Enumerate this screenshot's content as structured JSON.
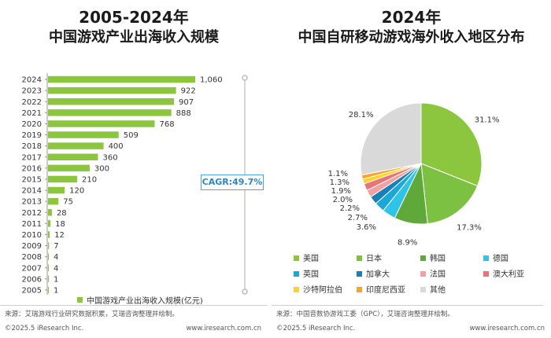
{
  "left": {
    "title_line1": "2005-2024年",
    "title_line2": "中国游戏产业出海收入规模",
    "cagr_label": "CAGR:49.7%",
    "legend_label": "中国游戏产业出海收入规模(亿元)",
    "source": "来源：艾瑞游戏行业研究数据积累，艾瑞咨询整理并绘制。",
    "copyright": "©2025.5 iResearch Inc.",
    "website": "www.iresearch.com.cn",
    "bar_color": "#8cc63e"
  },
  "right": {
    "title_line1": "2024年",
    "title_line2": "中国自研移动游戏海外收入地区分布",
    "source": "来源：中国音数协游戏工委（GPC），艾瑞咨询整理并绘制。",
    "copyright": "©2025.5 iResearch Inc.",
    "website": "www.iresearch.com.cn"
  },
  "chart_data": [
    {
      "type": "bar",
      "orientation": "horizontal",
      "categories": [
        "2024",
        "2023",
        "2022",
        "2021",
        "2020",
        "2019",
        "2018",
        "2017",
        "2016",
        "2015",
        "2014",
        "2013",
        "2012",
        "2011",
        "2010",
        "2009",
        "2008",
        "2007",
        "2006",
        "2005"
      ],
      "values": [
        1060,
        922,
        907,
        888,
        768,
        509,
        400,
        360,
        300,
        210,
        120,
        75,
        28,
        18,
        12,
        7,
        4,
        4,
        1,
        1
      ],
      "value_labels": [
        "1,060",
        "922",
        "907",
        "888",
        "768",
        "509",
        "400",
        "360",
        "300",
        "210",
        "120",
        "75",
        "28",
        "18",
        "12",
        "7",
        "4",
        "4",
        "1",
        "1"
      ],
      "title": "2005-2024年 中国游戏产业出海收入规模",
      "series": [
        {
          "name": "中国游戏产业出海收入规模(亿元)"
        }
      ],
      "annotation": "CAGR:49.7%",
      "legend_position": "bottom"
    },
    {
      "type": "pie",
      "title": "2024年 中国自研移动游戏海外收入地区分布",
      "labels": [
        "美国",
        "日本",
        "韩国",
        "德国",
        "英国",
        "加拿大",
        "法国",
        "澳大利亚",
        "沙特阿拉伯",
        "印度尼西亚",
        "其他"
      ],
      "values": [
        31.1,
        17.3,
        8.9,
        3.6,
        2.7,
        2.2,
        2.0,
        1.9,
        1.3,
        1.1,
        28.1
      ],
      "value_labels": [
        "31.1%",
        "17.3%",
        "8.9%",
        "3.6%",
        "2.7%",
        "2.2%",
        "2.0%",
        "1.9%",
        "1.3%",
        "1.1%",
        "28.1%"
      ],
      "colors": [
        "#8cc63e",
        "#7dc142",
        "#5fa83a",
        "#2ec4e8",
        "#1ba8d9",
        "#1a7fb8",
        "#f2a0a0",
        "#e8737a",
        "#ffd426",
        "#f5a623",
        "#d9d9d9"
      ],
      "legend_position": "bottom"
    }
  ]
}
